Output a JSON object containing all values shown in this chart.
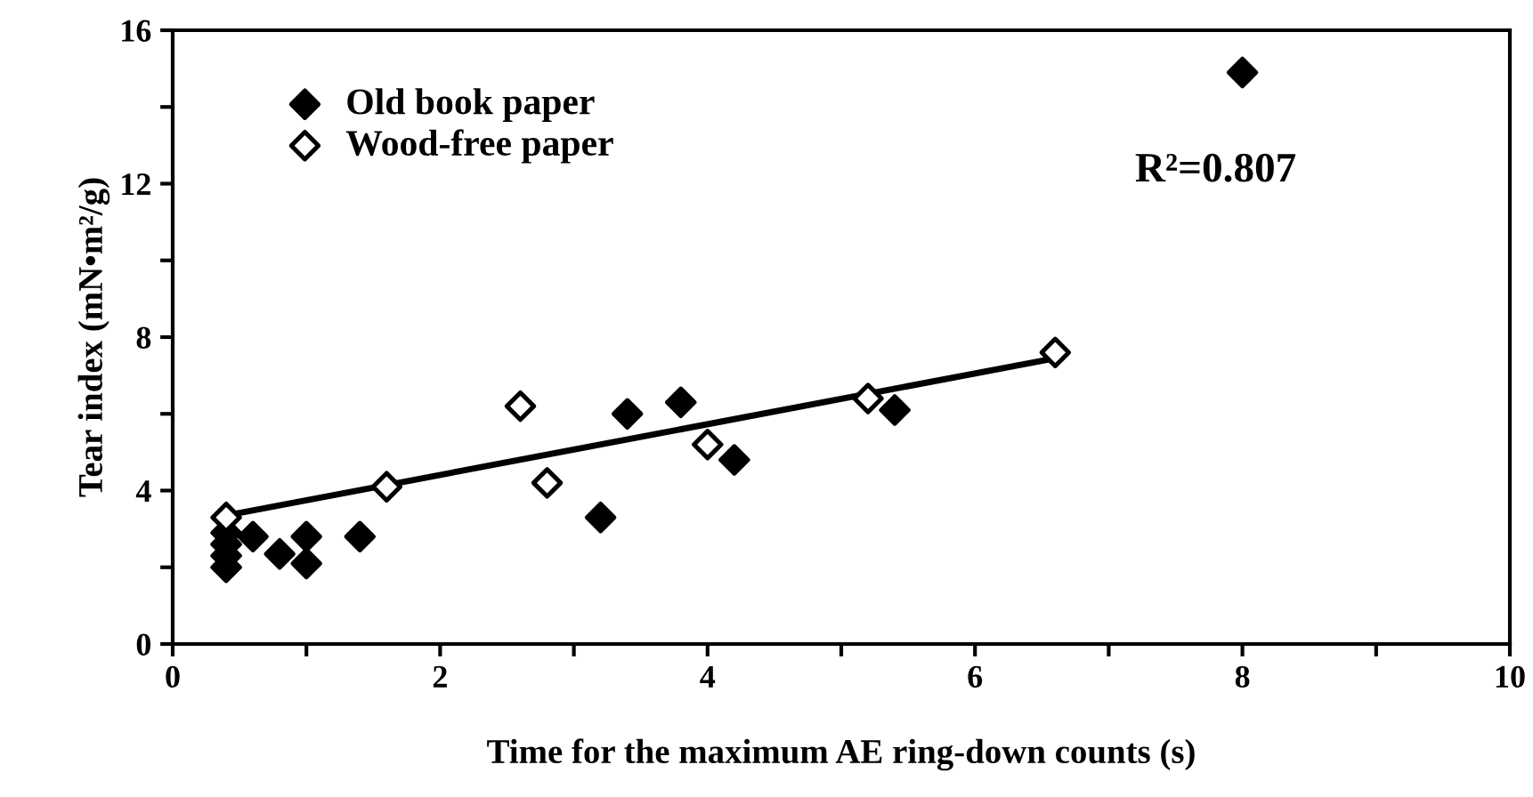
{
  "chart_data": {
    "type": "scatter",
    "xlabel": "Time for the maximum AE ring-down counts (s)",
    "ylabel": "Tear index (mN•m²/g)",
    "xlim": [
      0,
      10
    ],
    "ylim": [
      0,
      16
    ],
    "xticks": [
      0,
      {
        "value": 1,
        "label": null
      },
      2,
      {
        "value": 3,
        "label": null
      },
      4,
      {
        "value": 5,
        "label": null
      },
      6,
      {
        "value": 7,
        "label": null
      },
      8,
      {
        "value": 9,
        "label": null
      },
      10
    ],
    "yticks": [
      0,
      {
        "value": 2,
        "label": null
      },
      4,
      {
        "value": 6,
        "label": null
      },
      8,
      {
        "value": 10,
        "label": null
      },
      12,
      {
        "value": 14,
        "label": null
      },
      16
    ],
    "grid": false,
    "legend": "top left",
    "annotations": [
      "R²=0.807"
    ],
    "series": [
      {
        "name": "Old book paper",
        "color": "#000000",
        "marker": "diamond",
        "x": [
          0.4,
          0.4,
          0.4,
          0.4,
          0.6,
          0.8,
          1.0,
          1.0,
          1.4,
          3.2,
          3.4,
          3.8,
          4.2,
          5.4,
          8.0
        ],
        "values": [
          2.0,
          2.3,
          2.6,
          2.9,
          2.8,
          2.35,
          2.8,
          2.1,
          2.8,
          3.3,
          6.0,
          6.3,
          4.8,
          6.1,
          14.9
        ]
      },
      {
        "name": "Wood-free paper",
        "color": "#ffffff",
        "marker": "diamond",
        "x": [
          0.4,
          1.6,
          2.6,
          2.8,
          4.0,
          5.2,
          6.6
        ],
        "values": [
          3.3,
          4.1,
          6.2,
          4.2,
          5.2,
          6.4,
          7.6
        ]
      },
      {
        "type": "line",
        "color": "#000000",
        "marker": "none",
        "x": [
          0.4,
          6.6
        ],
        "values": [
          3.35,
          7.45
        ]
      }
    ]
  }
}
